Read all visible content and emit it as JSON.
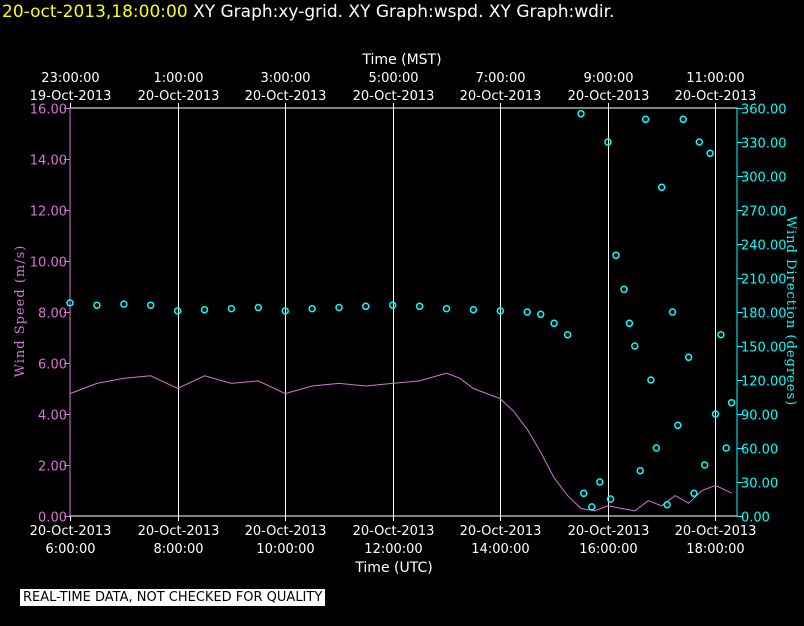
{
  "header": {
    "datetime": "20-oct-2013,18:00:00",
    "titles": "XY Graph:xy-grid.  XY Graph:wspd.  XY Graph:wdir."
  },
  "notice": "REAL-TIME DATA, NOT CHECKED FOR QUALITY",
  "colors": {
    "background": "#000000",
    "wind_speed": "#d873d8",
    "wind_direction": "#00ffff",
    "header_date": "#ffff00",
    "grid": "#ffffff"
  },
  "chart_data": {
    "type": "line",
    "top_axis": {
      "label": "Time (MST)",
      "ticks": [
        {
          "time": "23:00:00",
          "date": "19-Oct-2013"
        },
        {
          "time": "1:00:00",
          "date": "20-Oct-2013"
        },
        {
          "time": "3:00:00",
          "date": "20-Oct-2013"
        },
        {
          "time": "5:00:00",
          "date": "20-Oct-2013"
        },
        {
          "time": "7:00:00",
          "date": "20-Oct-2013"
        },
        {
          "time": "9:00:00",
          "date": "20-Oct-2013"
        },
        {
          "time": "11:00:00",
          "date": "20-Oct-2013"
        }
      ]
    },
    "bottom_axis": {
      "label": "Time (UTC)",
      "range_hours": [
        6,
        18.4
      ],
      "ticks": [
        {
          "hour": 6,
          "date": "20-Oct-2013",
          "time": "6:00:00"
        },
        {
          "hour": 8,
          "date": "20-Oct-2013",
          "time": "8:00:00"
        },
        {
          "hour": 10,
          "date": "20-Oct-2013",
          "time": "10:00:00"
        },
        {
          "hour": 12,
          "date": "20-Oct-2013",
          "time": "12:00:00"
        },
        {
          "hour": 14,
          "date": "20-Oct-2013",
          "time": "14:00:00"
        },
        {
          "hour": 16,
          "date": "20-Oct-2013",
          "time": "16:00:00"
        },
        {
          "hour": 18,
          "date": "20-Oct-2013",
          "time": "18:00:00"
        }
      ]
    },
    "left_axis": {
      "label": "Wind Speed (m/s)",
      "range": [
        0,
        16
      ],
      "ticks": [
        "0.00",
        "2.00",
        "4.00",
        "6.00",
        "8.00",
        "10.00",
        "12.00",
        "14.00",
        "16.00"
      ]
    },
    "right_axis": {
      "label": "Wind Direction (degrees)",
      "range": [
        0,
        360
      ],
      "ticks": [
        "0.00",
        "30.00",
        "60.00",
        "90.00",
        "120.00",
        "150.00",
        "180.00",
        "210.00",
        "240.00",
        "270.00",
        "300.00",
        "330.00",
        "360.00"
      ]
    },
    "series": [
      {
        "name": "wspd",
        "style": "line",
        "x_hours_utc": [
          6.0,
          6.5,
          7.0,
          7.5,
          8.0,
          8.5,
          9.0,
          9.5,
          10.0,
          10.5,
          11.0,
          11.5,
          12.0,
          12.5,
          13.0,
          13.25,
          13.5,
          13.75,
          14.0,
          14.25,
          14.5,
          14.75,
          15.0,
          15.25,
          15.5,
          15.75,
          16.0,
          16.25,
          16.5,
          16.75,
          17.0,
          17.25,
          17.5,
          17.75,
          18.0,
          18.3
        ],
        "values": [
          4.8,
          5.2,
          5.4,
          5.5,
          5.0,
          5.5,
          5.2,
          5.3,
          4.8,
          5.1,
          5.2,
          5.1,
          5.2,
          5.3,
          5.6,
          5.4,
          5.0,
          4.8,
          4.6,
          4.1,
          3.4,
          2.5,
          1.5,
          0.8,
          0.3,
          0.2,
          0.4,
          0.3,
          0.2,
          0.6,
          0.4,
          0.8,
          0.5,
          1.0,
          1.2,
          0.9
        ]
      },
      {
        "name": "wdir",
        "style": "scatter",
        "x_hours_utc": [
          6.0,
          6.5,
          7.0,
          7.5,
          8.0,
          8.5,
          9.0,
          9.5,
          10.0,
          10.5,
          11.0,
          11.5,
          12.0,
          12.5,
          13.0,
          13.5,
          14.0,
          14.5,
          14.75,
          15.0,
          15.25,
          15.5,
          15.55,
          15.7,
          15.85,
          16.0,
          16.05,
          16.15,
          16.3,
          16.4,
          16.5,
          16.6,
          16.7,
          16.8,
          16.9,
          17.0,
          17.1,
          17.2,
          17.3,
          17.4,
          17.5,
          17.6,
          17.7,
          17.8,
          17.9,
          18.0,
          18.1,
          18.2,
          18.3
        ],
        "values": [
          188,
          186,
          187,
          186,
          181,
          182,
          183,
          184,
          181,
          183,
          184,
          185,
          186,
          185,
          183,
          182,
          181,
          180,
          178,
          170,
          160,
          355,
          20,
          8,
          30,
          330,
          15,
          230,
          200,
          170,
          150,
          40,
          350,
          120,
          60,
          290,
          10,
          180,
          80,
          350,
          140,
          20,
          330,
          45,
          320,
          90,
          160,
          60,
          100
        ]
      }
    ]
  }
}
